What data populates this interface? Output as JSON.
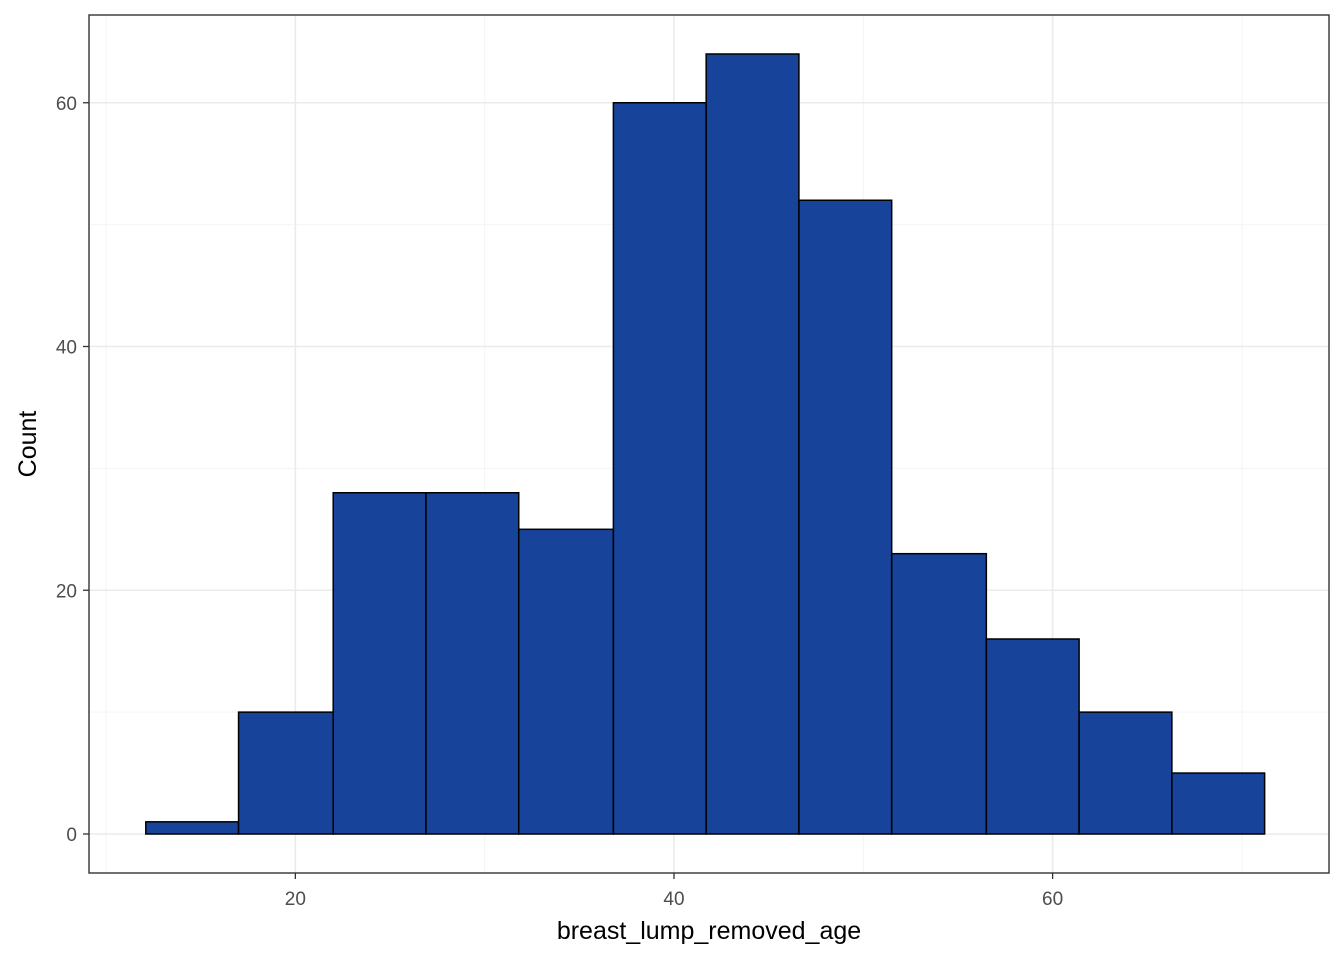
{
  "chart_data": {
    "type": "histogram",
    "title": "",
    "xlabel": "breast_lump_removed_age",
    "ylabel": "Count",
    "xlim": [
      9.1,
      74.6
    ],
    "ylim": [
      -3.2,
      67.2
    ],
    "x_ticks": [
      20,
      40,
      60
    ],
    "y_ticks": [
      0,
      20,
      40,
      60
    ],
    "grid": true,
    "bins": [
      {
        "x0": 12.1,
        "x1": 17.0,
        "count": 1
      },
      {
        "x0": 17.0,
        "x1": 22.0,
        "count": 10
      },
      {
        "x0": 22.0,
        "x1": 26.9,
        "count": 28
      },
      {
        "x0": 26.9,
        "x1": 31.8,
        "count": 28
      },
      {
        "x0": 31.8,
        "x1": 36.8,
        "count": 25
      },
      {
        "x0": 36.8,
        "x1": 41.7,
        "count": 60
      },
      {
        "x0": 41.7,
        "x1": 46.6,
        "count": 64
      },
      {
        "x0": 46.6,
        "x1": 51.5,
        "count": 52
      },
      {
        "x0": 51.5,
        "x1": 56.5,
        "count": 23
      },
      {
        "x0": 56.5,
        "x1": 61.4,
        "count": 16
      },
      {
        "x0": 61.4,
        "x1": 66.3,
        "count": 10
      },
      {
        "x0": 66.3,
        "x1": 71.2,
        "count": 5
      }
    ],
    "colors": {
      "bar_fill": "#17449A",
      "bar_stroke": "#000000",
      "grid_major": "#EBEBEB",
      "grid_minor": "#F5F5F5",
      "panel_border": "#333333",
      "tick_label": "#4D4D4D"
    }
  }
}
